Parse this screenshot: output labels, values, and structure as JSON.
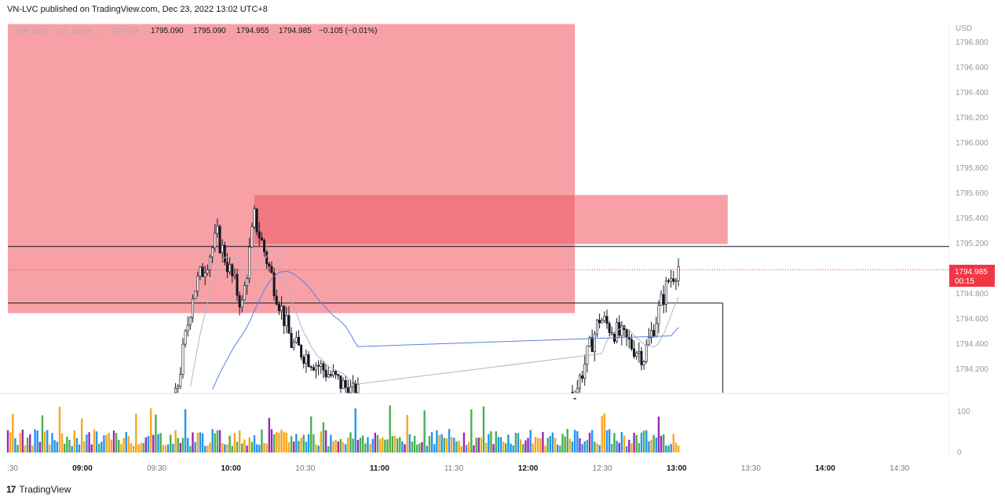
{
  "header": {
    "published": "VN-LVC published on TradingView.com, Dec 23, 2022 13:02 UTC+8"
  },
  "legend": {
    "symbol": "Gold Spot / U.S. Dollar · 1 · OANDA",
    "open": "1795.090",
    "high": "1795.090",
    "low": "1794.955",
    "close": "1794.985",
    "change": "−0.105 (−0.01%)"
  },
  "price_axis": {
    "currency": "USD",
    "last_price": "1794.985",
    "countdown": "00:15"
  },
  "volume_axis": {
    "labels": [
      "100",
      "0"
    ]
  },
  "footer": {
    "brand": "TradingView"
  },
  "colors": {
    "up": "#ffffff",
    "down": "#131722",
    "zone": "#f7a1a7",
    "zone_dark": "#f17880",
    "last_price": "#f23645",
    "ma_grey": "#b2b5be",
    "ma_blue": "#5b7fe0",
    "vol": [
      "#f6a623",
      "#4caf50",
      "#2196f3",
      "#9c27b0",
      "#e91e63"
    ]
  },
  "chart_data": {
    "type": "candlestick",
    "y_ticks": [
      1796.8,
      1796.6,
      1796.4,
      1796.2,
      1796.0,
      1795.8,
      1795.6,
      1795.4,
      1795.2,
      1794.8,
      1794.6,
      1794.4,
      1794.2
    ],
    "x_ticks": [
      ":30",
      "09:00",
      "09:30",
      "10:00",
      "10:30",
      "11:00",
      "11:30",
      "12:00",
      "12:30",
      "13:00",
      "13:30",
      "14:00",
      "14:30"
    ],
    "horizontal_lines": [
      1795.17,
      1794.72
    ],
    "zones": [
      {
        "t_from": 0,
        "t_to": 230,
        "p_top": 1796.94,
        "p_bottom": 1794.64,
        "shade": "light"
      },
      {
        "t_from": 100,
        "t_to": 230,
        "p_top": 1795.58,
        "p_bottom": 1795.19,
        "shade": "dark"
      },
      {
        "t_from": 230,
        "t_to": 292,
        "p_top": 1795.58,
        "p_bottom": 1795.19,
        "shade": "light"
      }
    ],
    "box": {
      "t_from": 230,
      "t_to": 290,
      "p_top": 1794.72,
      "p_bottom": 1794.0
    },
    "session_breaks": [
      [
        142,
        229
      ]
    ],
    "random_seed": 7
  }
}
